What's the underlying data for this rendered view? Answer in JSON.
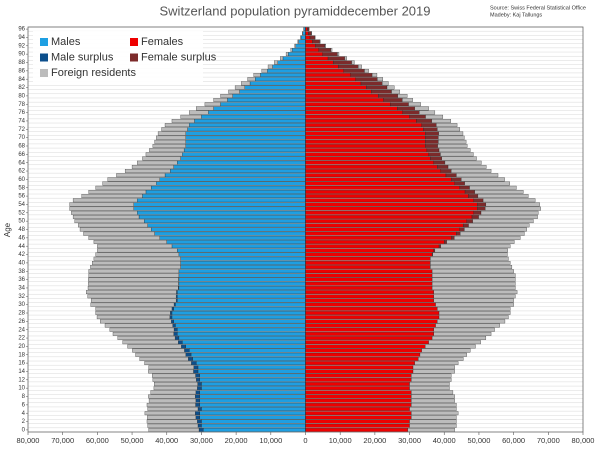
{
  "chart_data": {
    "type": "pyramid",
    "title": "Switzerland population pyramiddecember 2019",
    "source": "Source: Swiss Federal Statistical Office",
    "author": "Madeby: Kaj Tallungs",
    "y_label": "Age",
    "categories": [
      "0",
      null,
      "2",
      null,
      "4",
      null,
      "6",
      null,
      "8",
      null,
      "10",
      null,
      "12",
      null,
      "14",
      null,
      "16",
      null,
      "18",
      null,
      "20",
      null,
      "22",
      null,
      "24",
      null,
      "26",
      null,
      "28",
      null,
      "30",
      null,
      "32",
      null,
      "34",
      null,
      "36",
      null,
      "38",
      null,
      "40",
      null,
      "42",
      null,
      "44",
      null,
      "46",
      null,
      "48",
      null,
      "50",
      null,
      "52",
      null,
      "54",
      null,
      "56",
      null,
      "58",
      null,
      "60",
      null,
      "62",
      null,
      "64",
      null,
      "66",
      null,
      "68",
      null,
      "70",
      null,
      "72",
      null,
      "74",
      null,
      "76",
      null,
      "78",
      null,
      "80",
      null,
      "82",
      null,
      "84",
      null,
      "86",
      null,
      "88",
      null,
      "90",
      null,
      "92",
      null,
      "94",
      null,
      "96"
    ],
    "xlim": [
      -80000,
      80000
    ],
    "xticks": [
      {
        "value": -80000,
        "label": "80,000"
      },
      {
        "value": -70000,
        "label": "70,000"
      },
      {
        "value": -60000,
        "label": "60,000"
      },
      {
        "value": -50000,
        "label": "50,000"
      },
      {
        "value": -40000,
        "label": "40,000"
      },
      {
        "value": -30000,
        "label": "30,000"
      },
      {
        "value": -20000,
        "label": "20,000"
      },
      {
        "value": -10000,
        "label": "10,000"
      },
      0,
      {
        "value": 10000,
        "label": "10,000"
      },
      {
        "value": 20000,
        "label": "20,000"
      },
      {
        "value": 30000,
        "label": "30,000"
      },
      {
        "value": 40000,
        "label": "40,000"
      },
      {
        "value": 50000,
        "label": "50,000"
      },
      {
        "value": 60000,
        "label": "60,000"
      },
      {
        "value": 70000,
        "label": "70,000"
      },
      {
        "value": 80000,
        "label": "80,000"
      }
    ],
    "grid": true,
    "series": [
      {
        "name": "Males",
        "color": "#1e9fe2",
        "male_values": [
          29500,
          30000,
          30000,
          30500,
          30500,
          30000,
          30500,
          30500,
          30500,
          30500,
          30000,
          30000,
          30500,
          30500,
          31000,
          31000,
          31500,
          32500,
          33000,
          33500,
          34500,
          35500,
          36500,
          37000,
          37000,
          37500,
          38000,
          38500,
          38500,
          38000,
          37500,
          37000,
          37000,
          37000,
          36500,
          36500,
          36500,
          36500,
          36500,
          36000,
          36000,
          36000,
          36500,
          37000,
          38500,
          40000,
          42000,
          43500,
          44500,
          45500,
          46500,
          48000,
          48500,
          49500,
          49500,
          48500,
          47000,
          46000,
          44500,
          43000,
          42000,
          40500,
          39000,
          38000,
          37000,
          36000,
          35500,
          35000,
          34500,
          34500,
          34500,
          34500,
          34000,
          33500,
          32000,
          30000,
          28000,
          26500,
          24500,
          22500,
          21000,
          19000,
          17500,
          16000,
          14500,
          13000,
          11000,
          9500,
          8000,
          6500,
          5000,
          3800,
          2800,
          2000,
          1300,
          800,
          500
        ]
      },
      {
        "name": "Females",
        "color": "#ee0000",
        "female_values": [
          29500,
          30000,
          30000,
          30500,
          30500,
          30000,
          30500,
          30500,
          30500,
          30500,
          30000,
          30000,
          30500,
          30500,
          31000,
          31000,
          31500,
          32500,
          33000,
          33500,
          34500,
          35500,
          36500,
          37000,
          37000,
          37500,
          38000,
          38500,
          38500,
          38000,
          37500,
          37000,
          37000,
          37000,
          36500,
          36500,
          36500,
          36500,
          36500,
          36000,
          36000,
          36000,
          36500,
          37000,
          38500,
          40000,
          42000,
          43500,
          44500,
          45500,
          46500,
          48000,
          48500,
          49500,
          49500,
          48500,
          47000,
          46000,
          44500,
          43000,
          42000,
          40500,
          39000,
          38000,
          37000,
          36000,
          35500,
          35000,
          34500,
          34500,
          34500,
          34500,
          34000,
          33500,
          32000,
          30000,
          28000,
          26500,
          24500,
          22500,
          21000,
          19000,
          17500,
          16000,
          14500,
          13000,
          11000,
          9500,
          8000,
          6500,
          5000,
          3800,
          2800,
          2000,
          1300,
          800,
          500
        ]
      },
      {
        "name": "Male surplus",
        "color": "#0c4f8c",
        "male_values": [
          1200,
          1000,
          1200,
          1100,
          1300,
          1000,
          1200,
          1100,
          1300,
          1100,
          1200,
          1100,
          1000,
          1200,
          1300,
          1200,
          1400,
          1300,
          1500,
          1400,
          1300,
          1200,
          1100,
          1000,
          900,
          800,
          700,
          600,
          500,
          500,
          400,
          300,
          300,
          200,
          200,
          100,
          100,
          0,
          0,
          0,
          0,
          0,
          0,
          0,
          0,
          0,
          0,
          0,
          0,
          0,
          0,
          0,
          0,
          0,
          0,
          0,
          0,
          0,
          0,
          0,
          0,
          0,
          0,
          0,
          0,
          0,
          0,
          0,
          0,
          0,
          0,
          0,
          0,
          0,
          0,
          0,
          0,
          0,
          0,
          0,
          0,
          0,
          0,
          0,
          0,
          0,
          0,
          0,
          0,
          0,
          0,
          0,
          0,
          0,
          0,
          0,
          0
        ]
      },
      {
        "name": "Female surplus",
        "color": "#7d2b2b",
        "female_values": [
          0,
          0,
          0,
          0,
          0,
          0,
          0,
          0,
          0,
          0,
          0,
          0,
          0,
          0,
          0,
          0,
          0,
          0,
          0,
          0,
          0,
          0,
          0,
          0,
          0,
          0,
          0,
          0,
          0,
          0,
          0,
          0,
          0,
          0,
          0,
          0,
          0,
          0,
          0,
          0,
          0,
          0,
          200,
          300,
          500,
          700,
          900,
          1100,
          1300,
          1500,
          1700,
          1900,
          2100,
          2300,
          2500,
          2700,
          2700,
          2800,
          2800,
          2900,
          2900,
          3000,
          3000,
          3100,
          3200,
          3300,
          3400,
          3500,
          3600,
          3800,
          3800,
          3900,
          4000,
          4200,
          4400,
          4600,
          4800,
          5000,
          5200,
          5400,
          5600,
          5800,
          6000,
          6100,
          6200,
          6200,
          6000,
          5700,
          5300,
          4800,
          4200,
          3500,
          2800,
          2100,
          1400,
          900,
          500
        ]
      },
      {
        "name": "Foreign residents",
        "color": "#bcbcbc",
        "male_values": [
          14500,
          14500,
          14500,
          14000,
          14500,
          14500,
          14000,
          13500,
          13500,
          13000,
          12500,
          12500,
          12500,
          12500,
          13000,
          13000,
          13500,
          14000,
          14500,
          15000,
          15500,
          16000,
          16500,
          17500,
          18500,
          19500,
          20500,
          21000,
          21500,
          22000,
          24000,
          24500,
          25500,
          26000,
          26000,
          26000,
          26000,
          26000,
          26000,
          26000,
          25500,
          25000,
          24000,
          23000,
          21500,
          21000,
          20500,
          20500,
          20500,
          20000,
          20000,
          19000,
          19000,
          18500,
          18500,
          18500,
          17500,
          16500,
          16000,
          15500,
          15000,
          14000,
          13000,
          12000,
          11500,
          11000,
          10500,
          10000,
          9500,
          9000,
          8500,
          8000,
          7500,
          7000,
          6500,
          6000,
          5500,
          5000,
          4500,
          4000,
          3500,
          3200,
          2800,
          2500,
          2200,
          1900,
          1600,
          1300,
          1000,
          800,
          600,
          450,
          350,
          250,
          150,
          100,
          50
        ],
        "female_values": [
          13500,
          13500,
          13500,
          13000,
          13500,
          13500,
          13000,
          12500,
          12500,
          12000,
          11500,
          11500,
          11500,
          11500,
          12000,
          12000,
          12500,
          13000,
          13500,
          14000,
          14500,
          15000,
          15500,
          16500,
          17500,
          18500,
          19500,
          20000,
          20500,
          21000,
          22500,
          23000,
          23500,
          24000,
          24000,
          24000,
          24000,
          24000,
          23500,
          23500,
          23000,
          22500,
          21500,
          21000,
          20000,
          19500,
          19000,
          18500,
          18000,
          17500,
          17500,
          17000,
          16500,
          16000,
          15500,
          15000,
          14500,
          14000,
          13500,
          13000,
          12500,
          12000,
          11500,
          11000,
          10500,
          10000,
          9500,
          9000,
          8500,
          8000,
          7500,
          7000,
          6500,
          6000,
          5500,
          5000,
          4500,
          4000,
          3500,
          3000,
          2700,
          2400,
          2100,
          1800,
          1600,
          1400,
          1200,
          1000,
          800,
          600,
          450,
          350,
          250,
          180,
          120,
          80,
          40
        ]
      }
    ]
  }
}
